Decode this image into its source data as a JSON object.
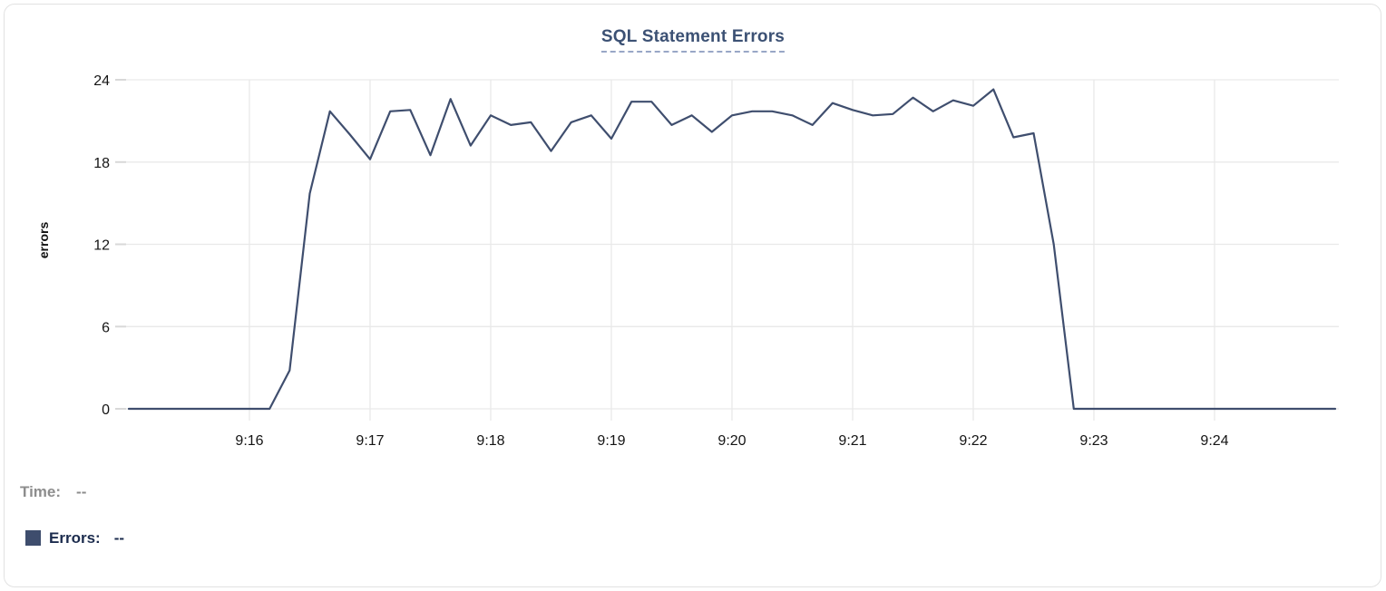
{
  "panel": {
    "title": "SQL Statement Errors"
  },
  "tooltip": {
    "time_label": "Time:",
    "time_value": "--",
    "errors_label": "Errors:",
    "errors_value": "--",
    "swatch_color": "#3e4d6d"
  },
  "colors": {
    "series_line": "#3f4e6e",
    "title_text": "#3c5174",
    "title_underline": "#98a7c6",
    "grid": "#e9e9e9",
    "tick": "#d8d8d8",
    "axis_text": "#141414"
  },
  "chart_data": {
    "type": "line",
    "title": "SQL Statement Errors",
    "xlabel": "",
    "ylabel": "errors",
    "ylim": [
      0,
      24
    ],
    "y_ticks": [
      0,
      6,
      12,
      18,
      24
    ],
    "grid": true,
    "legend_position": "below-left",
    "x_tick_labels": [
      "9:16",
      "9:17",
      "9:18",
      "9:19",
      "9:20",
      "9:21",
      "9:22",
      "9:23",
      "9:24"
    ],
    "x_tick_indices": [
      6,
      12,
      18,
      24,
      30,
      36,
      42,
      48,
      54
    ],
    "x_times": [
      "9:15:00",
      "9:15:10",
      "9:15:20",
      "9:15:30",
      "9:15:40",
      "9:15:50",
      "9:16:00",
      "9:16:10",
      "9:16:20",
      "9:16:30",
      "9:16:40",
      "9:16:50",
      "9:17:00",
      "9:17:10",
      "9:17:20",
      "9:17:30",
      "9:17:40",
      "9:17:50",
      "9:18:00",
      "9:18:10",
      "9:18:20",
      "9:18:30",
      "9:18:40",
      "9:18:50",
      "9:19:00",
      "9:19:10",
      "9:19:20",
      "9:19:30",
      "9:19:40",
      "9:19:50",
      "9:20:00",
      "9:20:10",
      "9:20:20",
      "9:20:30",
      "9:20:40",
      "9:20:50",
      "9:21:00",
      "9:21:10",
      "9:21:20",
      "9:21:30",
      "9:21:40",
      "9:21:50",
      "9:22:00",
      "9:22:10",
      "9:22:20",
      "9:22:30",
      "9:22:40",
      "9:22:50",
      "9:23:00",
      "9:23:10",
      "9:23:20",
      "9:23:30",
      "9:23:40",
      "9:23:50",
      "9:24:00",
      "9:24:10",
      "9:24:20",
      "9:24:30",
      "9:24:40",
      "9:24:50",
      "9:25:00"
    ],
    "series": [
      {
        "name": "Errors",
        "color": "#3f4e6e",
        "values": [
          0,
          0,
          0,
          0,
          0,
          0,
          0,
          0,
          2.8,
          15.7,
          21.7,
          20,
          18.2,
          21.7,
          21.8,
          18.5,
          22.6,
          19.2,
          21.4,
          20.7,
          20.9,
          18.8,
          20.9,
          21.4,
          19.7,
          22.4,
          22.4,
          20.7,
          21.4,
          20.2,
          21.4,
          21.7,
          21.7,
          21.4,
          20.7,
          22.3,
          21.8,
          21.4,
          21.5,
          22.7,
          21.7,
          22.5,
          22.1,
          23.3,
          19.8,
          20.1,
          12,
          0,
          0,
          0,
          0,
          0,
          0,
          0,
          0,
          0,
          0,
          0,
          0,
          0,
          0
        ]
      }
    ]
  }
}
